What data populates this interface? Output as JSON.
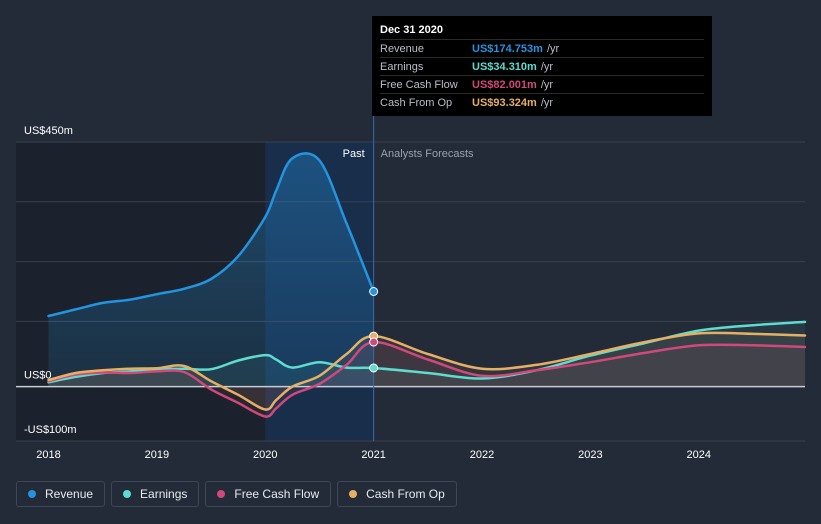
{
  "colors": {
    "background": "#232b39",
    "revenue": "#2394df",
    "earnings": "#5ddccf",
    "free_cash_flow": "#d1487a",
    "cash_from_op": "#e6b064",
    "grid": "#39414f",
    "zero_line": "#c9ccd2"
  },
  "tooltip": {
    "date": "Dec 31 2020",
    "rows": [
      {
        "label": "Revenue",
        "value": "US$174.753m",
        "unit": "/yr",
        "color": "#2394df"
      },
      {
        "label": "Earnings",
        "value": "US$34.310m",
        "unit": "/yr",
        "color": "#5ddccf"
      },
      {
        "label": "Free Cash Flow",
        "value": "US$82.001m",
        "unit": "/yr",
        "color": "#d1487a"
      },
      {
        "label": "Cash From Op",
        "value": "US$93.324m",
        "unit": "/yr",
        "color": "#e6b064"
      }
    ]
  },
  "legend": [
    {
      "label": "Revenue",
      "color": "#2394df"
    },
    {
      "label": "Earnings",
      "color": "#5ddccf"
    },
    {
      "label": "Free Cash Flow",
      "color": "#d1487a"
    },
    {
      "label": "Cash From Op",
      "color": "#e6b064"
    }
  ],
  "chart_data": {
    "type": "line",
    "title": "",
    "region_labels": {
      "past": "Past",
      "forecast": "Analysts Forecasts"
    },
    "y_tick_labels": [
      {
        "value": 450,
        "label": "US$450m"
      },
      {
        "value": 0,
        "label": "US$0"
      },
      {
        "value": -100,
        "label": "-US$100m"
      }
    ],
    "x_tick_labels": [
      {
        "value": 2018,
        "label": "2018"
      },
      {
        "value": 2019,
        "label": "2019"
      },
      {
        "value": 2020,
        "label": "2020"
      },
      {
        "value": 2021,
        "label": "2021"
      },
      {
        "value": 2022,
        "label": "2022"
      },
      {
        "value": 2023,
        "label": "2023"
      },
      {
        "value": 2024,
        "label": "2024"
      }
    ],
    "xlim": [
      2017.7,
      2024.98
    ],
    "ylim": [
      -100,
      450
    ],
    "past_end": 2021.0,
    "highlight_start": 2020.0,
    "series": [
      {
        "name": "Revenue",
        "key": "revenue",
        "points": [
          [
            2018.0,
            130
          ],
          [
            2018.25,
            142
          ],
          [
            2018.5,
            154
          ],
          [
            2018.75,
            160
          ],
          [
            2019.0,
            170
          ],
          [
            2019.25,
            180
          ],
          [
            2019.5,
            198
          ],
          [
            2019.75,
            240
          ],
          [
            2020.0,
            312
          ],
          [
            2020.1,
            360
          ],
          [
            2020.25,
            420
          ],
          [
            2020.5,
            416
          ],
          [
            2020.75,
            300
          ],
          [
            2021.0,
            175
          ]
        ]
      },
      {
        "name": "Earnings",
        "key": "earnings",
        "points": [
          [
            2018.0,
            8
          ],
          [
            2018.25,
            18
          ],
          [
            2018.5,
            25
          ],
          [
            2018.75,
            28
          ],
          [
            2019.0,
            32
          ],
          [
            2019.25,
            33
          ],
          [
            2019.5,
            32
          ],
          [
            2019.75,
            48
          ],
          [
            2020.0,
            58
          ],
          [
            2020.1,
            50
          ],
          [
            2020.25,
            35
          ],
          [
            2020.5,
            45
          ],
          [
            2020.75,
            35
          ],
          [
            2021.0,
            34.3
          ],
          [
            2021.5,
            25
          ],
          [
            2022.0,
            15
          ],
          [
            2022.5,
            30
          ],
          [
            2023.0,
            57
          ],
          [
            2023.5,
            80
          ],
          [
            2024.0,
            103
          ],
          [
            2024.5,
            113
          ],
          [
            2024.98,
            119
          ]
        ]
      },
      {
        "name": "Free Cash Flow",
        "key": "free_cash_flow",
        "points": [
          [
            2018.0,
            10
          ],
          [
            2018.25,
            22
          ],
          [
            2018.5,
            26
          ],
          [
            2018.75,
            25
          ],
          [
            2019.0,
            28
          ],
          [
            2019.25,
            27
          ],
          [
            2019.5,
            -5
          ],
          [
            2019.75,
            -30
          ],
          [
            2020.0,
            -55
          ],
          [
            2020.1,
            -40
          ],
          [
            2020.25,
            -15
          ],
          [
            2020.5,
            5
          ],
          [
            2020.75,
            40
          ],
          [
            2021.0,
            82
          ],
          [
            2021.5,
            50
          ],
          [
            2022.0,
            20
          ],
          [
            2022.5,
            30
          ],
          [
            2023.0,
            45
          ],
          [
            2023.5,
            62
          ],
          [
            2024.0,
            76
          ],
          [
            2024.5,
            76
          ],
          [
            2024.98,
            73
          ]
        ]
      },
      {
        "name": "Cash From Op",
        "key": "cash_from_op",
        "points": [
          [
            2018.0,
            12
          ],
          [
            2018.25,
            25
          ],
          [
            2018.5,
            30
          ],
          [
            2018.75,
            33
          ],
          [
            2019.0,
            34
          ],
          [
            2019.25,
            38
          ],
          [
            2019.5,
            10
          ],
          [
            2019.75,
            -15
          ],
          [
            2020.0,
            -42
          ],
          [
            2020.1,
            -25
          ],
          [
            2020.25,
            0
          ],
          [
            2020.5,
            20
          ],
          [
            2020.75,
            60
          ],
          [
            2021.0,
            93
          ],
          [
            2021.5,
            60
          ],
          [
            2022.0,
            33
          ],
          [
            2022.5,
            40
          ],
          [
            2023.0,
            60
          ],
          [
            2023.5,
            82
          ],
          [
            2024.0,
            98
          ],
          [
            2024.5,
            97
          ],
          [
            2024.98,
            94
          ]
        ]
      }
    ],
    "markers_at": 2021.0
  }
}
